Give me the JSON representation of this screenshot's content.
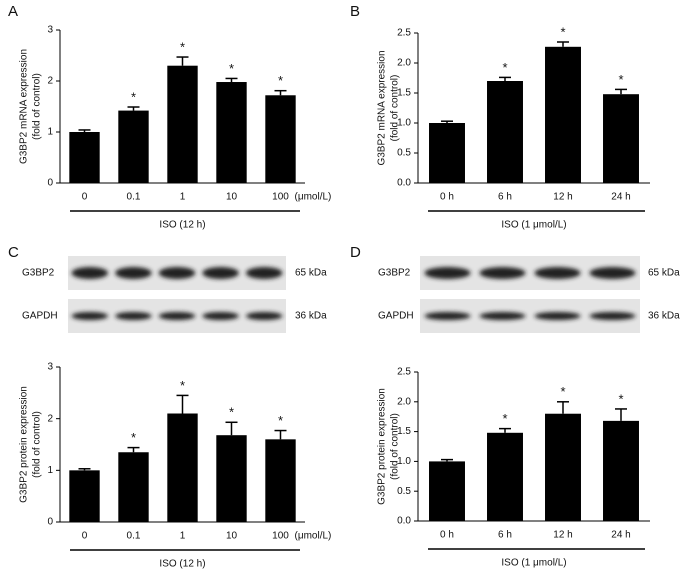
{
  "chart_data": [
    {
      "type": "bar",
      "panel": "A",
      "ylabel": [
        "G3BP2 mRNA expression",
        "(fold of control)"
      ],
      "categories": [
        "0",
        "0.1",
        "1",
        "10",
        "100"
      ],
      "unit": "(μmol/L)",
      "xlabel": "ISO (12 h)",
      "values": [
        1.0,
        1.42,
        2.3,
        1.98,
        1.72
      ],
      "errors": [
        0.04,
        0.07,
        0.17,
        0.07,
        0.09
      ],
      "significance": [
        null,
        "*",
        "*",
        "*",
        "*"
      ],
      "color": "#000000",
      "ylim": [
        0,
        3
      ],
      "yticks": [
        0,
        1,
        2,
        3
      ]
    },
    {
      "type": "bar",
      "panel": "B",
      "ylabel": [
        "G3BP2 mRNA expression",
        "(fold of control)"
      ],
      "categories": [
        "0 h",
        "6 h",
        "12 h",
        "24 h"
      ],
      "xlabel": "ISO (1 μmol/L)",
      "values": [
        1.0,
        1.7,
        2.27,
        1.48
      ],
      "errors": [
        0.03,
        0.06,
        0.08,
        0.08
      ],
      "significance": [
        null,
        "*",
        "*",
        "*"
      ],
      "color": "#000000",
      "ylim": [
        0,
        2.5
      ],
      "yticks": [
        {
          "value": 0,
          "label": "0.0"
        },
        0.5,
        {
          "value": 1,
          "label": "1.0"
        },
        1.5,
        {
          "value": 2,
          "label": "2.0"
        },
        2.5
      ]
    },
    {
      "type": "bar",
      "panel": "C",
      "ylabel": [
        "G3BP2 protein expression",
        "(fold of control)"
      ],
      "blots": [
        {
          "name": "G3BP2",
          "size": "65 kDa"
        },
        {
          "name": "GAPDH",
          "size": "36 kDa"
        }
      ],
      "categories": [
        "0",
        "0.1",
        "1",
        "10",
        "100"
      ],
      "unit": "(μmol/L)",
      "xlabel": "ISO (12 h)",
      "values": [
        1.0,
        1.35,
        2.1,
        1.68,
        1.6
      ],
      "errors": [
        0.03,
        0.09,
        0.35,
        0.25,
        0.17
      ],
      "significance": [
        null,
        "*",
        "*",
        "*",
        "*"
      ],
      "color": "#000000",
      "ylim": [
        0,
        3
      ],
      "yticks": [
        0,
        1,
        2,
        3
      ]
    },
    {
      "type": "bar",
      "panel": "D",
      "ylabel": [
        "G3BP2 protein expression",
        "(fold of control)"
      ],
      "blots": [
        {
          "name": "G3BP2",
          "size": "65 kDa"
        },
        {
          "name": "GAPDH",
          "size": "36 kDa"
        }
      ],
      "categories": [
        "0 h",
        "6 h",
        "12 h",
        "24 h"
      ],
      "xlabel": "ISO (1 μmol/L)",
      "values": [
        1.0,
        1.48,
        1.8,
        1.68
      ],
      "errors": [
        0.03,
        0.07,
        0.2,
        0.2
      ],
      "significance": [
        null,
        "*",
        "*",
        "*"
      ],
      "color": "#000000",
      "ylim": [
        0,
        2.5
      ],
      "yticks": [
        {
          "value": 0,
          "label": "0.0"
        },
        0.5,
        {
          "value": 1,
          "label": "1.0"
        },
        1.5,
        {
          "value": 2,
          "label": "2.0"
        },
        2.5
      ]
    }
  ]
}
